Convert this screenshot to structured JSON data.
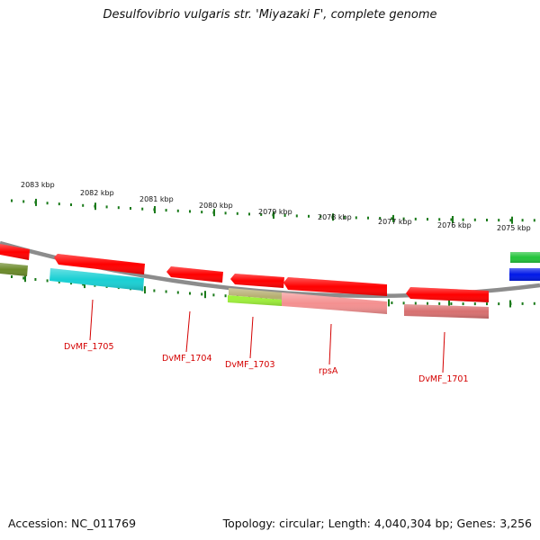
{
  "title": "Desulfovibrio vulgaris str. 'Miyazaki F', complete genome",
  "footer": {
    "accession": "Accession: NC_011769",
    "topology": "Topology: circular; Length: 4,040,304 bp; Genes: 3,256"
  },
  "ticks": [
    {
      "label": "2083 kbp"
    },
    {
      "label": "2082 kbp"
    },
    {
      "label": "2081 kbp"
    },
    {
      "label": "2080 kbp"
    },
    {
      "label": "2079 kbp"
    },
    {
      "label": "2078 kbp"
    },
    {
      "label": "2077 kbp"
    },
    {
      "label": "2076 kbp"
    },
    {
      "label": "2075 kbp"
    }
  ],
  "gene_labels": [
    {
      "text": "DvMF_1705"
    },
    {
      "text": "DvMF_1704"
    },
    {
      "text": "DvMF_1703"
    },
    {
      "text": "rpsA"
    },
    {
      "text": "DvMF_1701"
    }
  ],
  "colors": {
    "cds": "#ff0000",
    "cds_light": "#f49090",
    "cds_muted": "#d87070",
    "olive": "#6b8a2a",
    "cyan": "#19d0d4",
    "khaki": "#b5ae70",
    "lime": "#9ff23a",
    "green": "#22c43a",
    "blue": "#0018e8",
    "tick": "#1a7a1a",
    "backbone": "#8c8c8c",
    "label": "#d40000"
  }
}
